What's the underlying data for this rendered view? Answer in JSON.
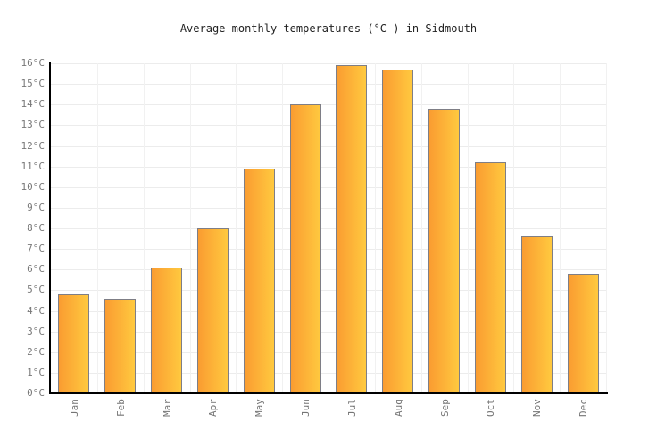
{
  "chart_data": {
    "type": "bar",
    "title": "Average monthly temperatures (°C ) in Sidmouth",
    "categories": [
      "Jan",
      "Feb",
      "Mar",
      "Apr",
      "May",
      "Jun",
      "Jul",
      "Aug",
      "Sep",
      "Oct",
      "Nov",
      "Dec"
    ],
    "values": [
      4.8,
      4.6,
      6.1,
      8.0,
      10.9,
      14.0,
      15.9,
      15.7,
      13.8,
      11.2,
      7.6,
      5.8
    ],
    "series_name": "Average monthly temperature (°C)",
    "xlabel": "",
    "ylabel": "",
    "ylim": [
      0,
      16
    ],
    "y_tick_step": 1,
    "y_tick_suffix": "°C",
    "grid": true,
    "legend_position": "none",
    "colors": {
      "bar_gradient_left": "#FA9C31",
      "bar_gradient_right": "#FFC93F",
      "bar_border": "#7E7E86",
      "axis": "#000000",
      "hgrid": "#ECECEC",
      "vgrid": "#F1F1F1",
      "tick_label": "#787878",
      "title": "#222222",
      "background": "#FFFFFF"
    }
  }
}
